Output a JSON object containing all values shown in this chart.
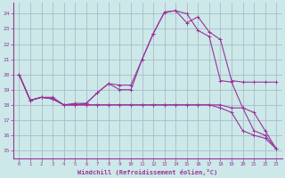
{
  "xlabel": "Windchill (Refroidissement éolien,°C)",
  "xlim": [
    -0.5,
    23.5
  ],
  "ylim": [
    14.5,
    24.7
  ],
  "yticks": [
    15,
    16,
    17,
    18,
    19,
    20,
    21,
    22,
    23,
    24
  ],
  "xticks": [
    0,
    1,
    2,
    3,
    4,
    5,
    6,
    7,
    8,
    9,
    10,
    11,
    12,
    13,
    14,
    15,
    16,
    17,
    18,
    19,
    20,
    21,
    22,
    23
  ],
  "background_color": "#cce8e8",
  "grid_color": "#aabbcc",
  "line_color": "#993399",
  "lines": [
    [
      20.0,
      18.3,
      18.5,
      18.5,
      18.0,
      18.0,
      18.1,
      18.8,
      19.4,
      19.3,
      19.3,
      21.0,
      22.7,
      24.1,
      24.2,
      23.4,
      23.8,
      22.8,
      22.3,
      19.6,
      19.5,
      19.5,
      19.5,
      19.5
    ],
    [
      20.0,
      18.3,
      18.5,
      18.4,
      18.0,
      18.1,
      18.1,
      18.8,
      19.4,
      19.0,
      19.0,
      21.0,
      22.7,
      24.1,
      24.2,
      24.0,
      22.9,
      22.5,
      19.6,
      19.5,
      17.8,
      16.3,
      16.0,
      15.1
    ],
    [
      20.0,
      18.3,
      18.5,
      18.4,
      18.0,
      18.0,
      18.0,
      18.0,
      18.0,
      18.0,
      18.0,
      18.0,
      18.0,
      18.0,
      18.0,
      18.0,
      18.0,
      18.0,
      18.0,
      17.8,
      17.8,
      17.5,
      16.3,
      15.1
    ],
    [
      20.0,
      18.3,
      18.5,
      18.4,
      18.0,
      18.0,
      18.0,
      18.0,
      18.0,
      18.0,
      18.0,
      18.0,
      18.0,
      18.0,
      18.0,
      18.0,
      18.0,
      18.0,
      17.8,
      17.5,
      16.3,
      16.0,
      15.8,
      15.1
    ]
  ]
}
